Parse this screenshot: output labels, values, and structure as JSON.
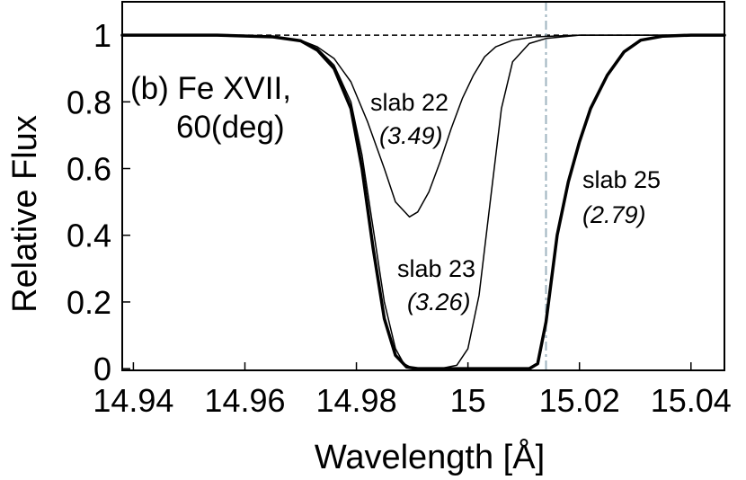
{
  "chart_data": {
    "type": "line",
    "title": "",
    "xlabel": "Wavelength [Å]",
    "ylabel": "Relative Flux",
    "xlim": [
      14.938,
      15.046
    ],
    "ylim": [
      -0.005,
      1.1
    ],
    "x_ticks": [
      14.94,
      14.96,
      14.98,
      15.0,
      15.02,
      15.04
    ],
    "x_tick_labels": [
      "14.94",
      "14.96",
      "14.98",
      "15",
      "15.02",
      "15.04"
    ],
    "y_ticks": [
      0,
      0.2,
      0.4,
      0.6,
      0.8,
      1.0
    ],
    "y_tick_labels": [
      "0",
      "0.2",
      "0.4",
      "0.6",
      "0.8",
      "1"
    ],
    "panel_label_line1": "(b) Fe XVII,",
    "panel_label_line2": "60(deg)",
    "reference_lines": [
      {
        "name": "continuum",
        "orientation": "horizontal",
        "value": 1.0,
        "style": "dashed",
        "color": "#000000"
      },
      {
        "name": "rest-wavelength",
        "orientation": "vertical",
        "value": 15.014,
        "style": "dash-dot",
        "color": "#9fb4bf"
      }
    ],
    "series": [
      {
        "name": "slab 22",
        "label": "slab 22",
        "value_label": "(3.49)",
        "stroke": 1.5,
        "x": [
          14.938,
          14.955,
          14.965,
          14.97,
          14.973,
          14.976,
          14.979,
          14.982,
          14.985,
          14.987,
          14.9895,
          14.991,
          14.993,
          14.995,
          14.997,
          14.999,
          15.001,
          15.003,
          15.005,
          15.008,
          15.012,
          15.02,
          15.046
        ],
        "y": [
          1.0,
          1.0,
          0.995,
          0.985,
          0.965,
          0.93,
          0.86,
          0.74,
          0.6,
          0.5,
          0.455,
          0.47,
          0.53,
          0.62,
          0.72,
          0.81,
          0.88,
          0.935,
          0.965,
          0.985,
          0.995,
          1.0,
          1.0
        ]
      },
      {
        "name": "slab 23",
        "label": "slab 23",
        "value_label": "(3.26)",
        "stroke": 1.5,
        "x": [
          14.938,
          14.955,
          14.965,
          14.97,
          14.973,
          14.976,
          14.979,
          14.981,
          14.983,
          14.985,
          14.987,
          14.9885,
          14.99,
          14.992,
          14.995,
          14.998,
          15.0,
          15.002,
          15.004,
          15.006,
          15.008,
          15.011,
          15.014,
          15.02,
          15.046
        ],
        "y": [
          1.0,
          1.0,
          0.995,
          0.985,
          0.96,
          0.91,
          0.8,
          0.64,
          0.42,
          0.2,
          0.06,
          0.015,
          0.002,
          0.0,
          0.0,
          0.01,
          0.06,
          0.22,
          0.5,
          0.78,
          0.92,
          0.975,
          0.99,
          1.0,
          1.0
        ]
      },
      {
        "name": "slab 25",
        "label": "slab 25",
        "value_label": "(2.79)",
        "stroke": 3.5,
        "x": [
          14.938,
          14.955,
          14.965,
          14.97,
          14.973,
          14.976,
          14.979,
          14.981,
          14.983,
          14.985,
          14.987,
          14.989,
          14.991,
          15.0,
          15.008,
          15.011,
          15.0125,
          15.014,
          15.016,
          15.018,
          15.02,
          15.022,
          15.025,
          15.028,
          15.031,
          15.035,
          15.04,
          15.046
        ],
        "y": [
          1.0,
          1.0,
          0.995,
          0.983,
          0.955,
          0.9,
          0.78,
          0.6,
          0.36,
          0.15,
          0.04,
          0.005,
          0.0,
          0.0,
          0.0,
          0.0,
          0.015,
          0.14,
          0.4,
          0.56,
          0.68,
          0.78,
          0.88,
          0.95,
          0.985,
          0.997,
          1.0,
          1.0
        ]
      }
    ]
  }
}
